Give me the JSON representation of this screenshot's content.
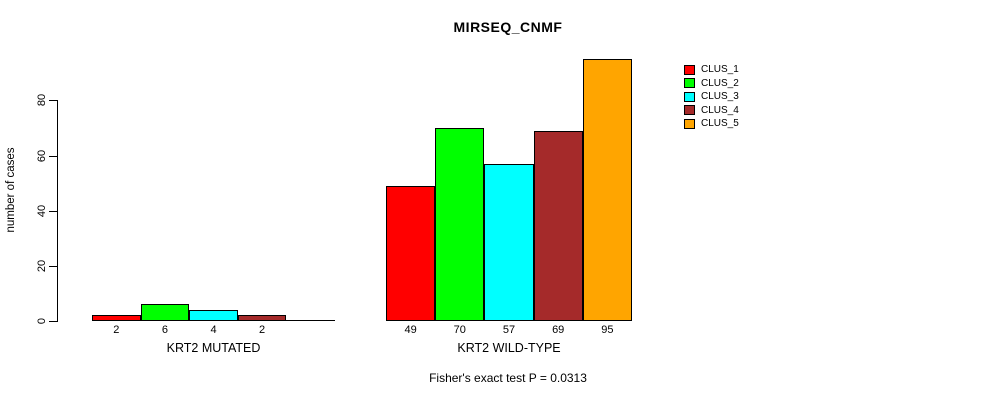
{
  "chart_data": {
    "type": "bar",
    "title": "MIRSEQ_CNMF",
    "ylabel": "number of cases",
    "subtitle": "Fisher's exact test P = 0.0313",
    "yticks": [
      0,
      20,
      40,
      60,
      80
    ],
    "ylim": [
      0,
      95
    ],
    "grid": false,
    "legend_position": "right",
    "legend": [
      "CLUS_1",
      "CLUS_2",
      "CLUS_3",
      "CLUS_4",
      "CLUS_5"
    ],
    "colors": [
      "#FF0000",
      "#00FF00",
      "#00FFFF",
      "#A52A2A",
      "#FFA500"
    ],
    "groups": [
      {
        "label": "KRT2 MUTATED",
        "values": [
          2,
          6,
          4,
          2,
          0
        ],
        "value_labels": [
          "2",
          "6",
          "4",
          "2",
          ""
        ]
      },
      {
        "label": "KRT2 WILD-TYPE",
        "values": [
          49,
          70,
          57,
          69,
          95
        ],
        "value_labels": [
          "49",
          "70",
          "57",
          "69",
          "95"
        ]
      }
    ]
  }
}
